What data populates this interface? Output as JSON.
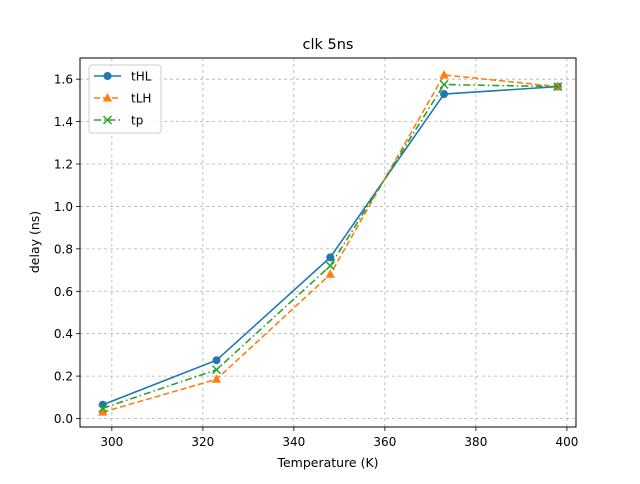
{
  "chart_data": {
    "type": "line",
    "title": "clk 5ns",
    "xlabel": "Temperature (K)",
    "ylabel": "delay (ns)",
    "xlim": [
      293,
      402
    ],
    "ylim": [
      -0.04,
      1.7
    ],
    "xticks": [
      300,
      320,
      340,
      360,
      380,
      400
    ],
    "yticks": [
      0.0,
      0.2,
      0.4,
      0.6,
      0.8,
      1.0,
      1.2,
      1.4,
      1.6
    ],
    "grid": true,
    "legend_position": "top-left",
    "x": [
      298,
      323,
      348,
      373,
      398
    ],
    "series": [
      {
        "name": "tHL",
        "values": [
          0.065,
          0.275,
          0.76,
          1.53,
          1.565
        ],
        "color": "#1f77b4",
        "marker": "circle",
        "linestyle": "solid"
      },
      {
        "name": "tLH",
        "values": [
          0.03,
          0.185,
          0.68,
          1.62,
          1.565
        ],
        "color": "#ff7f0e",
        "marker": "triangle",
        "linestyle": "dashed"
      },
      {
        "name": "tp",
        "values": [
          0.048,
          0.23,
          0.72,
          1.575,
          1.565
        ],
        "color": "#2ca02c",
        "marker": "x",
        "linestyle": "dashdot"
      }
    ]
  }
}
